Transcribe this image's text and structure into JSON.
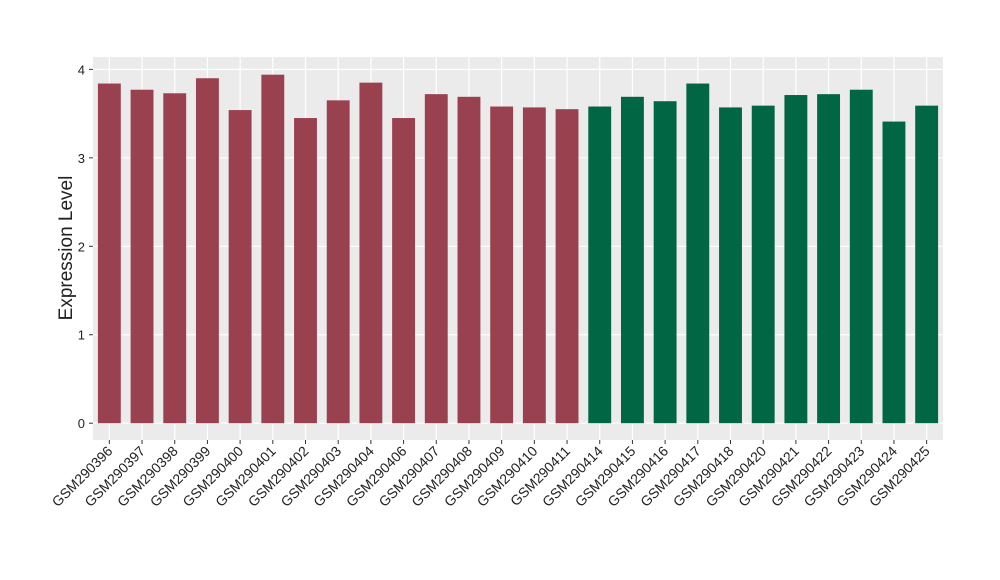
{
  "chart_data": {
    "type": "bar",
    "y_label": "Expression Level",
    "categories": [
      "GSM290396",
      "GSM290397",
      "GSM290398",
      "GSM290399",
      "GSM290400",
      "GSM290401",
      "GSM290402",
      "GSM290403",
      "GSM290404",
      "GSM290406",
      "GSM290407",
      "GSM290408",
      "GSM290409",
      "GSM290410",
      "GSM290411",
      "GSM290414",
      "GSM290415",
      "GSM290416",
      "GSM290417",
      "GSM290418",
      "GSM290420",
      "GSM290421",
      "GSM290422",
      "GSM290423",
      "GSM290424",
      "GSM290425"
    ],
    "values": [
      3.84,
      3.77,
      3.73,
      3.9,
      3.54,
      3.94,
      3.45,
      3.65,
      3.85,
      3.45,
      3.72,
      3.69,
      3.58,
      3.57,
      3.55,
      3.58,
      3.69,
      3.64,
      3.84,
      3.57,
      3.59,
      3.71,
      3.72,
      3.77,
      3.41,
      3.59
    ],
    "colors": [
      "#9a4150",
      "#9a4150",
      "#9a4150",
      "#9a4150",
      "#9a4150",
      "#9a4150",
      "#9a4150",
      "#9a4150",
      "#9a4150",
      "#9a4150",
      "#9a4150",
      "#9a4150",
      "#9a4150",
      "#9a4150",
      "#9a4150",
      "#006644",
      "#006644",
      "#006644",
      "#006644",
      "#006644",
      "#006644",
      "#006644",
      "#006644",
      "#006644",
      "#006644",
      "#006644"
    ],
    "ylim": [
      -0.19,
      4.14
    ],
    "yticks": [
      0,
      1,
      2,
      3,
      4
    ],
    "grid": true
  }
}
